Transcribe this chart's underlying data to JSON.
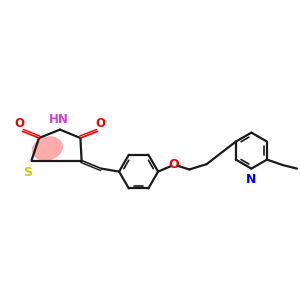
{
  "bg_color": "#ffffff",
  "bond_color": "#1a1a1a",
  "S_color": "#cccc00",
  "N_color": "#0000ee",
  "O_color": "#ee0000",
  "highlight_color": "#ff6666",
  "highlight_N_color": "#cc44cc",
  "figsize": [
    3.0,
    3.0
  ],
  "dpi": 100,
  "xlim": [
    0,
    10
  ],
  "ylim": [
    2.5,
    7.5
  ]
}
